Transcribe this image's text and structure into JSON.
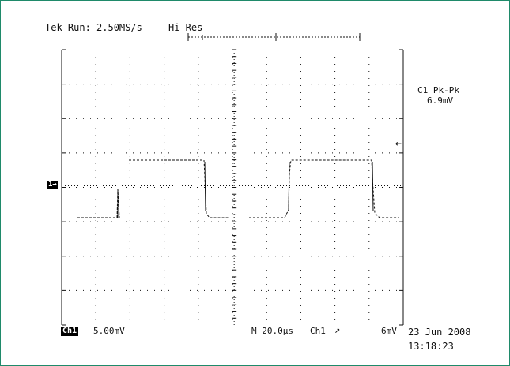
{
  "header": {
    "status": "Tek Run: 2.50MS/s",
    "mode": "Hi Res"
  },
  "measurement": {
    "label": "C1 Pk-Pk",
    "value": "6.9mV"
  },
  "markers": {
    "ch1": "1→",
    "trigger_level_arrow": "←",
    "trigger_position": "T"
  },
  "footer": {
    "channel": "Ch1",
    "volts_per_div": "5.00mV",
    "timebase": "M 20.0µs",
    "trigger_source": "Ch1",
    "trigger_slope_glyph": "↗",
    "trigger_level": "6mV",
    "date": "23 Jun 2008",
    "time": "13:18:23"
  },
  "colors": {
    "frame": "#1f8a6a",
    "ink": "#111111"
  }
}
